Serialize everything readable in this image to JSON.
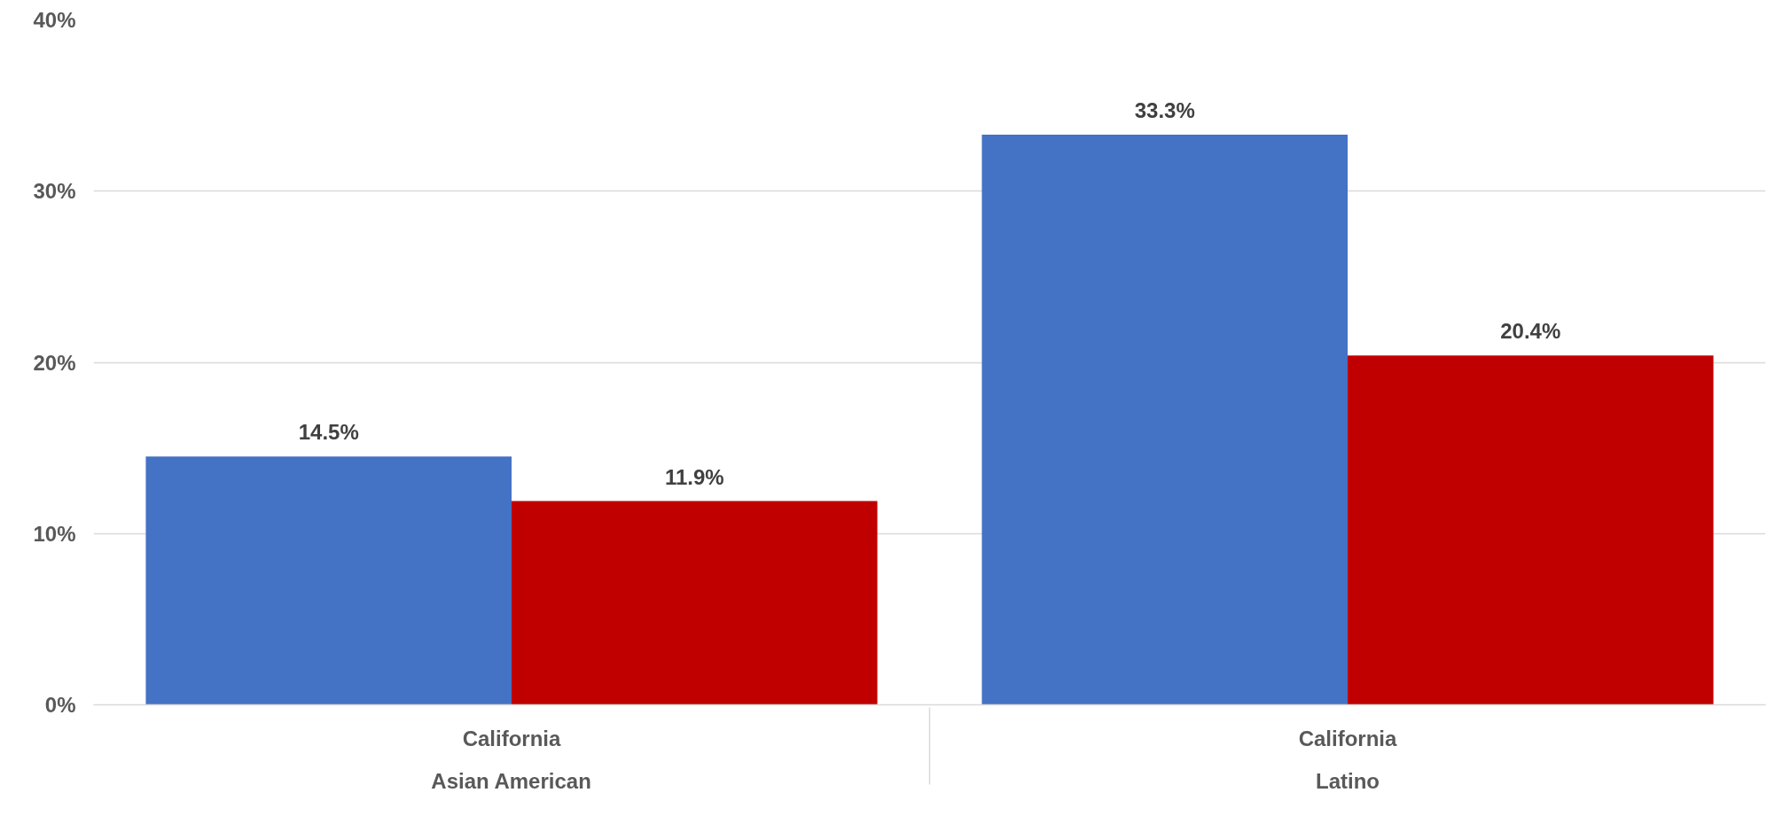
{
  "chart_data": {
    "type": "bar",
    "categories": [
      "California\nAsian American",
      "California\nLatino"
    ],
    "series": [
      {
        "color": "#4472c4",
        "values": [
          14.5,
          33.3
        ],
        "value_labels": [
          "14.5%",
          "33.3%"
        ]
      },
      {
        "color": "#c00000",
        "values": [
          11.9,
          20.4
        ],
        "value_labels": [
          "11.9%",
          "20.4%"
        ]
      }
    ],
    "ylim": [
      0,
      40
    ],
    "yticks": [
      {
        "value": 0,
        "label": "0%"
      },
      {
        "value": 10,
        "label": "10%"
      },
      {
        "value": 20,
        "label": "20%"
      },
      {
        "value": 30,
        "label": "30%"
      },
      {
        "value": 40,
        "label": "40%"
      }
    ],
    "grid": "y"
  }
}
